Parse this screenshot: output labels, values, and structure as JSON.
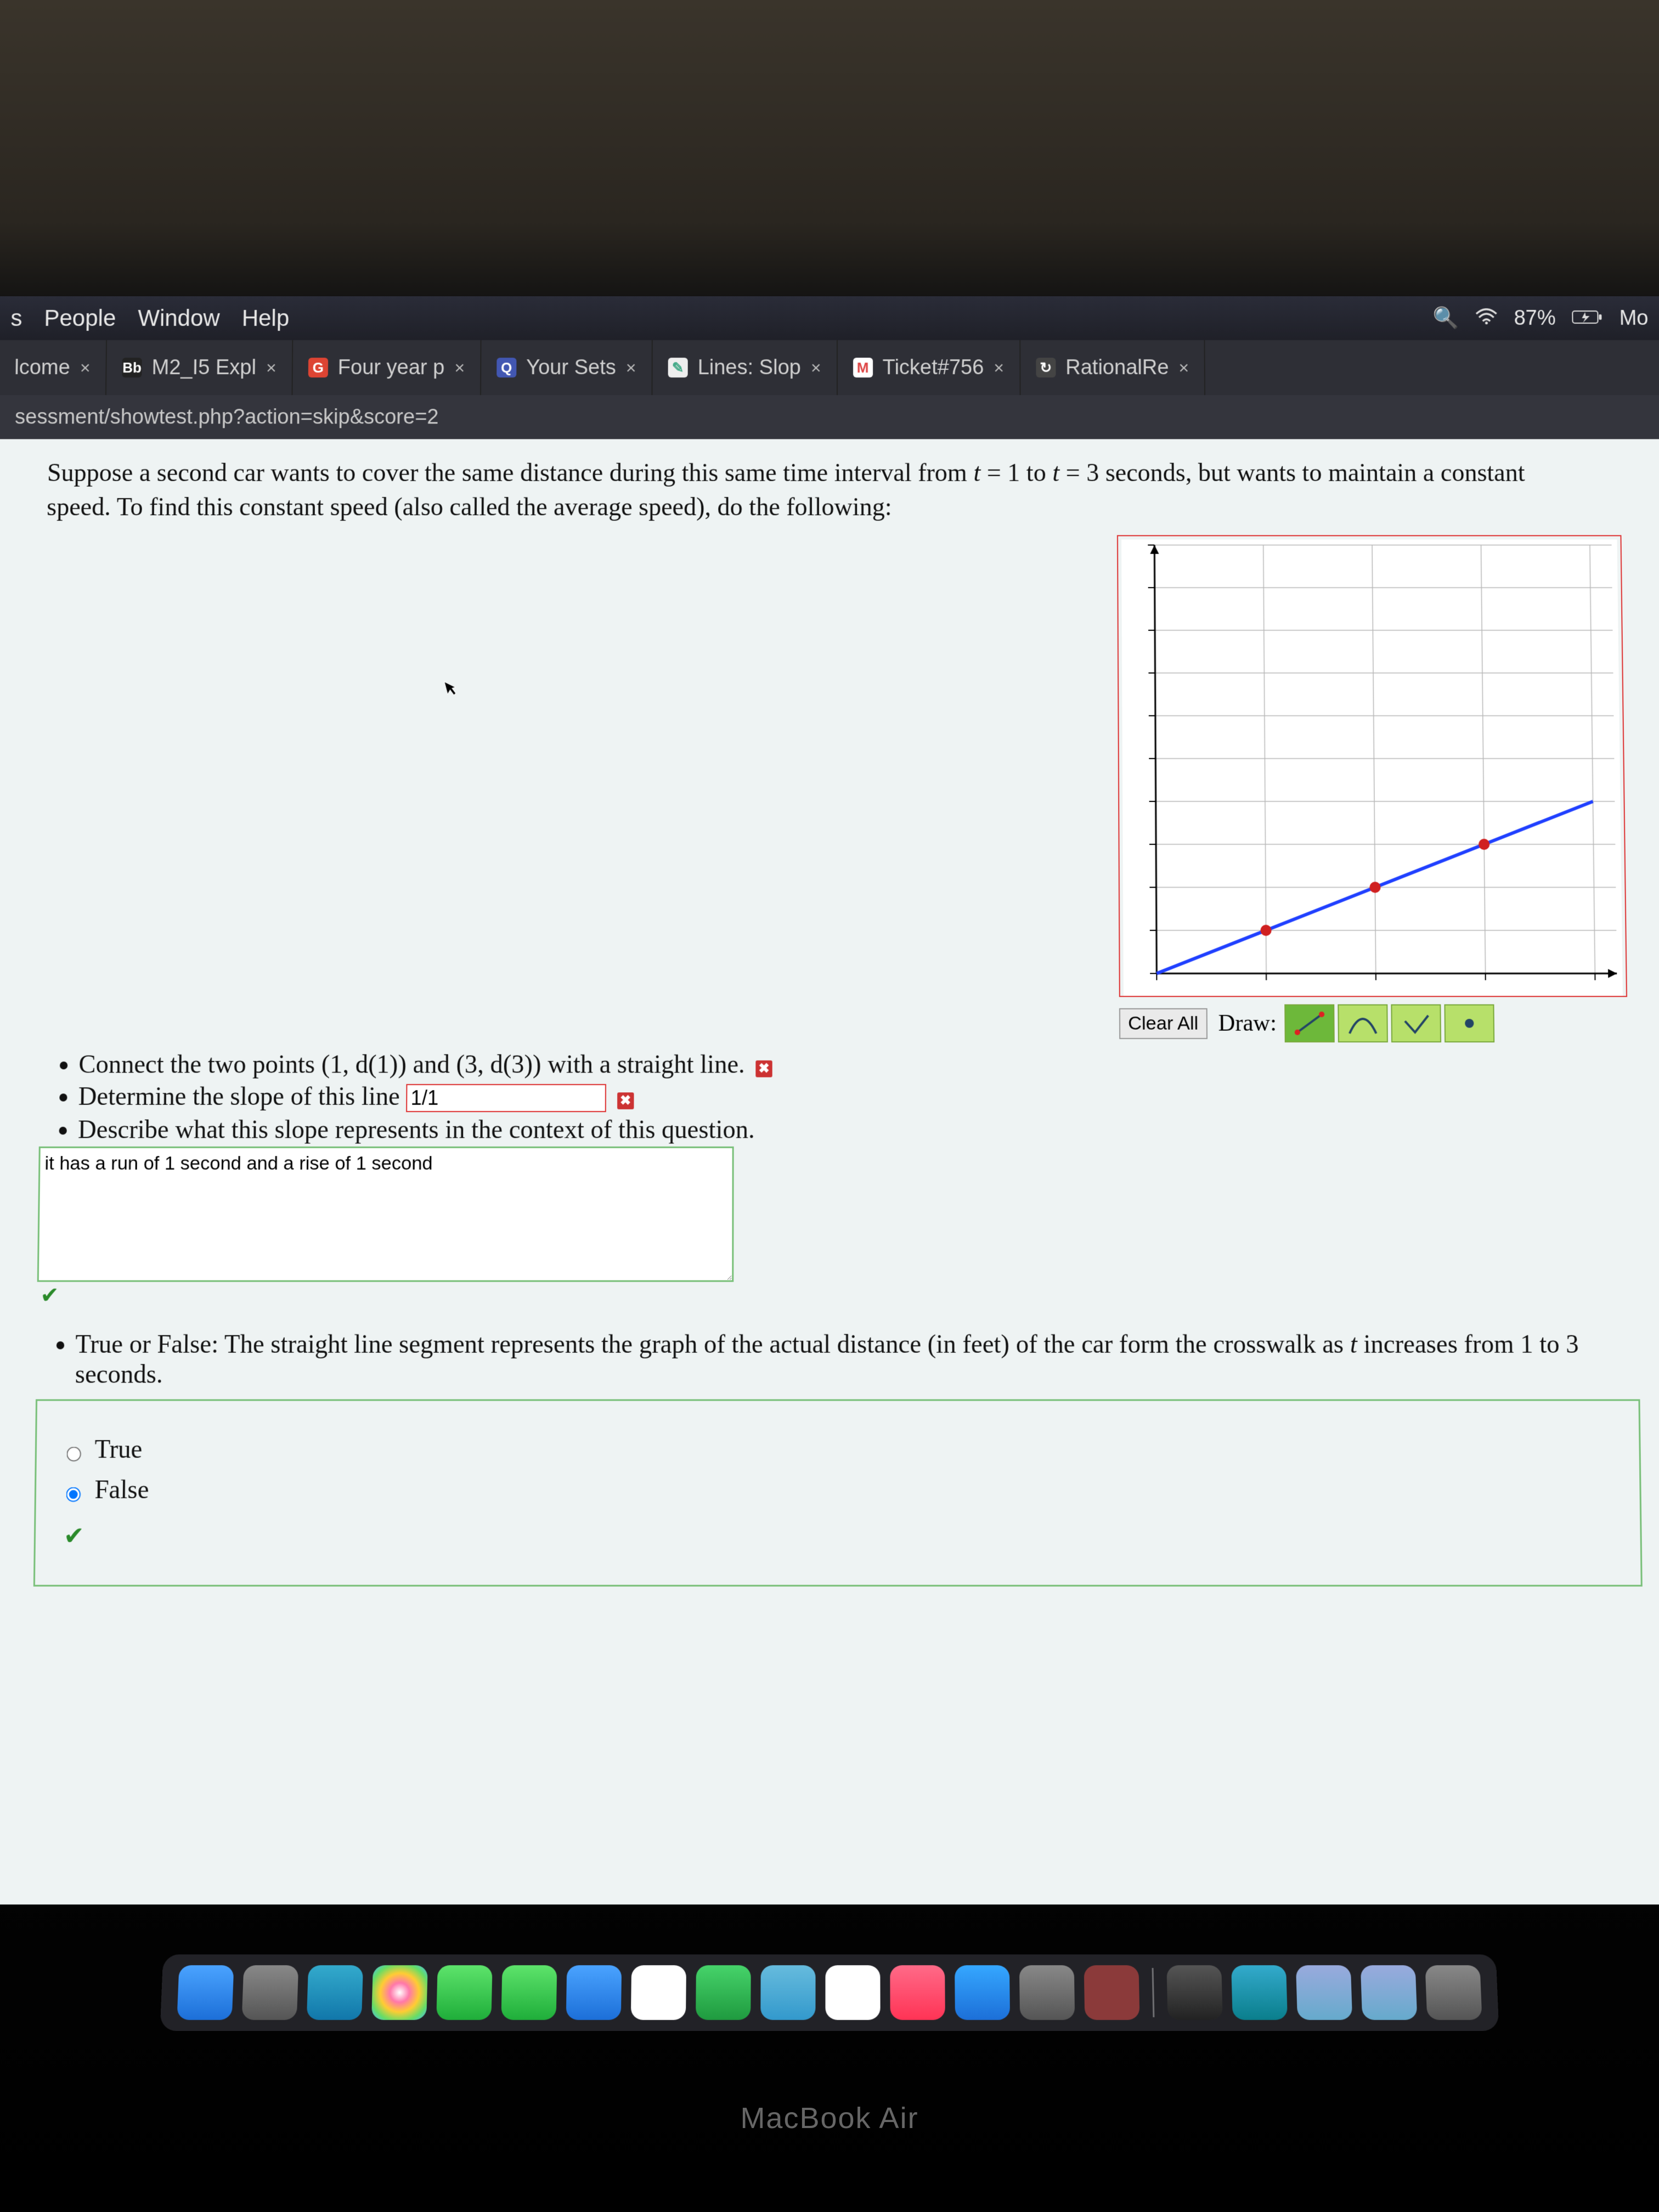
{
  "menubar": {
    "items": [
      "s",
      "People",
      "Window",
      "Help"
    ],
    "battery_pct": "87%",
    "right_label": "Mo"
  },
  "tabs": [
    {
      "label": "lcome",
      "favicon_bg": "#444",
      "favicon_text": ""
    },
    {
      "label": "M2_I5 Expl",
      "favicon_bg": "#222",
      "favicon_text": "Bb",
      "favicon_fg": "#fff"
    },
    {
      "label": "Four year p",
      "favicon_bg": "#1a73e8",
      "favicon_text": "G",
      "favicon_fg": "#fff"
    },
    {
      "label": "Your Sets",
      "favicon_bg": "#4257b2",
      "favicon_text": "Q",
      "favicon_fg": "#fff"
    },
    {
      "label": "Lines: Slop",
      "favicon_bg": "#eee",
      "favicon_text": "✎",
      "favicon_fg": "#4a8"
    },
    {
      "label": "Ticket#756",
      "favicon_bg": "#fff",
      "favicon_text": "M",
      "favicon_fg": "#d44"
    },
    {
      "label": "RationalRe",
      "favicon_bg": "#444",
      "favicon_text": "↻",
      "favicon_fg": "#fff"
    }
  ],
  "address_bar": "sessment/showtest.php?action=skip&score=2",
  "problem": {
    "text_a": "Suppose a second car wants to cover the same distance during this same time interval from ",
    "t1": "t",
    "eq1": " = 1 to ",
    "t2": "t",
    "eq2": " = 3 seconds, but wants to maintain a constant speed. To find this constant speed (also called the average speed), do the following:"
  },
  "graph": {
    "border_color": "#d33",
    "grid_color": "#b8b8b8",
    "axis_color": "#000",
    "line_color": "#2040ff",
    "point_color": "#d02020",
    "background": "#ffffff",
    "xlim": [
      0,
      4.2
    ],
    "ylim": [
      0,
      10
    ],
    "x_ticks": [
      0,
      1,
      2,
      3,
      4
    ],
    "y_grid_lines": 10,
    "line_points": [
      [
        0,
        0
      ],
      [
        1,
        1
      ],
      [
        2,
        2
      ],
      [
        3,
        3
      ],
      [
        4,
        4
      ]
    ],
    "data_points": [
      [
        1,
        1
      ],
      [
        2,
        2
      ],
      [
        3,
        3
      ]
    ],
    "line_width": 6,
    "point_radius": 10
  },
  "toolbar": {
    "clear_label": "Clear All",
    "draw_label": "Draw:",
    "tools": [
      {
        "name": "line-tool",
        "icon": "line",
        "active": true
      },
      {
        "name": "parabola-tool",
        "icon": "parabola",
        "active": false
      },
      {
        "name": "check-tool",
        "icon": "checkline",
        "active": false
      },
      {
        "name": "point-tool",
        "icon": "dot",
        "active": false
      }
    ]
  },
  "tasks": {
    "task1": "Connect the two points (1, d(1)) and (3, d(3)) with a straight line.",
    "task2_a": "Determine the slope of this line",
    "slope_value": "1/1",
    "task3": "Describe what this slope represents in the context of this question.",
    "explain_value": "it has a run of 1 second and a rise of 1 second",
    "tf_prompt_a": "True or False: The straight line segment represents the graph of the actual distance (in feet) of the car form the crosswalk as ",
    "tf_t": "t",
    "tf_prompt_b": " increases from 1 to 3 seconds.",
    "tf_true": "True",
    "tf_false": "False",
    "tf_selected": "False"
  },
  "dock": {
    "apps": [
      {
        "name": "finder",
        "bg": "linear-gradient(#4aa3ff,#1c6fd8)"
      },
      {
        "name": "launchpad",
        "bg": "linear-gradient(#888,#555)"
      },
      {
        "name": "safari",
        "bg": "linear-gradient(#3ac,#17a)"
      },
      {
        "name": "photos",
        "bg": "radial-gradient(circle,#fff,#f7a,#fc3,#6d6,#4bf)"
      },
      {
        "name": "messages",
        "bg": "linear-gradient(#5de36b,#1fae3a)"
      },
      {
        "name": "facetime",
        "bg": "linear-gradient(#5de36b,#1fae3a)"
      },
      {
        "name": "mail",
        "bg": "linear-gradient(#4aa3ff,#1c6fd8)"
      },
      {
        "name": "calendar",
        "bg": "#fff"
      },
      {
        "name": "numbers",
        "bg": "linear-gradient(#46d36a,#1f9a3f)"
      },
      {
        "name": "weather",
        "bg": "linear-gradient(#6bd,#39c)"
      },
      {
        "name": "nosign",
        "bg": "#fff"
      },
      {
        "name": "music",
        "bg": "linear-gradient(#ff6a88,#ff3355)"
      },
      {
        "name": "appstore",
        "bg": "linear-gradient(#35a7ff,#1c6fd8)"
      },
      {
        "name": "settings",
        "bg": "linear-gradient(#888,#555)"
      },
      {
        "name": "dictionary",
        "bg": "#8b3a3a"
      },
      {
        "name": "preview",
        "bg": "linear-gradient(#555,#222)"
      },
      {
        "name": "edge",
        "bg": "linear-gradient(#3ac,#0a7e8c)"
      },
      {
        "name": "folder1",
        "bg": "linear-gradient(#9ad,#6ac)"
      },
      {
        "name": "folder2",
        "bg": "linear-gradient(#9ad,#6ac)"
      },
      {
        "name": "trash",
        "bg": "linear-gradient(#888,#555)"
      }
    ]
  },
  "laptop_label": "MacBook Air"
}
